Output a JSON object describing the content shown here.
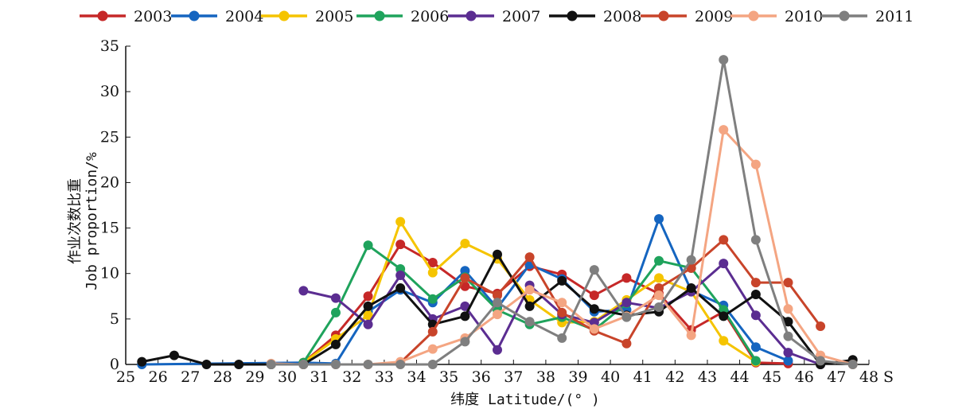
{
  "chart_data": {
    "type": "line",
    "xlabel": "纬度 Latitude/(° )",
    "ylabel_cn": "作业次数比重",
    "ylabel_en": "Job proportion/%",
    "x_unit_suffix": "S",
    "x_ticks": [
      25,
      26,
      27,
      28,
      29,
      30,
      31,
      32,
      33,
      34,
      35,
      36,
      37,
      38,
      39,
      40,
      41,
      42,
      43,
      44,
      45,
      46,
      47,
      48
    ],
    "y_ticks": [
      0,
      5,
      10,
      15,
      20,
      25,
      30,
      35
    ],
    "xlim": [
      25,
      48
    ],
    "ylim": [
      0,
      35
    ],
    "grid": false,
    "legend_position": "top",
    "series": [
      {
        "name": "2003",
        "color": "#c62828",
        "x": [
          30.5,
          31.5,
          32.5,
          33.5,
          34.5,
          35.5,
          36.5,
          37.5,
          38.5,
          39.5,
          40.5,
          41.5,
          42.5,
          43.5,
          44.5,
          45.5
        ],
        "y": [
          0.2,
          3.2,
          7.5,
          13.2,
          11.2,
          8.6,
          7.8,
          10.8,
          9.9,
          7.6,
          9.5,
          7.8,
          3.8,
          5.8,
          0.2,
          0.1
        ]
      },
      {
        "name": "2004",
        "color": "#1565c0",
        "x": [
          25.5,
          30.5,
          31.5,
          32.5,
          33.5,
          34.5,
          35.5,
          36.5,
          37.5,
          38.5,
          39.5,
          40.5,
          41.5,
          42.5,
          43.5,
          44.5,
          45.5
        ],
        "y": [
          0,
          0.2,
          0.1,
          5.8,
          8.2,
          6.8,
          10.3,
          6.2,
          11.0,
          9.4,
          5.8,
          6.0,
          16.0,
          8.1,
          6.5,
          1.9,
          0.4
        ]
      },
      {
        "name": "2005",
        "color": "#f5c400",
        "x": [
          30.5,
          31.5,
          32.5,
          33.5,
          34.5,
          35.5,
          36.5,
          37.5,
          38.5,
          39.5,
          40.5,
          41.5,
          42.5,
          43.5,
          44.5
        ],
        "y": [
          0.2,
          2.8,
          5.4,
          15.7,
          10.1,
          13.3,
          11.6,
          7.1,
          4.6,
          4.7,
          7.1,
          9.5,
          8.0,
          2.6,
          0.3
        ]
      },
      {
        "name": "2006",
        "color": "#1fa35c",
        "x": [
          30.5,
          31.5,
          32.5,
          33.5,
          34.5,
          35.5,
          36.5,
          37.5,
          38.5,
          39.5,
          40.5,
          41.5,
          42.5,
          43.5,
          44.5
        ],
        "y": [
          0.2,
          5.7,
          13.1,
          10.5,
          7.2,
          9.6,
          6.0,
          4.4,
          5.2,
          3.8,
          6.7,
          11.4,
          10.6,
          6.0,
          0.4
        ]
      },
      {
        "name": "2007",
        "color": "#5b2d91",
        "x": [
          30.5,
          31.5,
          32.5,
          33.5,
          34.5,
          35.5,
          36.5,
          37.5,
          38.5,
          39.5,
          40.5,
          41.5,
          42.5,
          43.5,
          44.5,
          45.5,
          46.5
        ],
        "y": [
          8.1,
          7.3,
          4.4,
          9.8,
          5.0,
          6.4,
          1.6,
          8.7,
          5.5,
          4.6,
          6.8,
          6.2,
          8.0,
          11.1,
          5.4,
          1.3,
          0
        ]
      },
      {
        "name": "2008",
        "color": "#111111",
        "x": [
          25.5,
          26.5,
          27.5,
          28.5,
          29.5,
          30.5,
          31.5,
          32.5,
          33.5,
          34.5,
          35.5,
          36.5,
          37.5,
          38.5,
          39.5,
          40.5,
          41.5,
          42.5,
          43.5,
          44.5,
          45.5,
          46.5,
          47.5
        ],
        "y": [
          0.3,
          1.0,
          0,
          0,
          0,
          0,
          2.2,
          6.4,
          8.4,
          4.4,
          5.3,
          12.1,
          6.4,
          9.2,
          6.1,
          5.4,
          5.8,
          8.4,
          5.3,
          7.7,
          4.7,
          0,
          0.5
        ]
      },
      {
        "name": "2009",
        "color": "#c8442a",
        "x": [
          33.5,
          34.5,
          35.5,
          36.5,
          37.5,
          38.5,
          39.5,
          40.5,
          41.5,
          42.5,
          43.5,
          44.5,
          45.5,
          46.5
        ],
        "y": [
          0.2,
          3.6,
          9.5,
          7.6,
          11.8,
          5.7,
          3.7,
          2.3,
          8.4,
          10.6,
          13.7,
          9.0,
          9.0,
          4.2
        ]
      },
      {
        "name": "2010",
        "color": "#f4a582",
        "x": [
          29.5,
          30.5,
          31.5,
          32.5,
          33.5,
          34.5,
          35.5,
          36.5,
          37.5,
          38.5,
          39.5,
          40.5,
          41.5,
          42.5,
          43.5,
          44.5,
          45.5,
          46.5,
          47.5
        ],
        "y": [
          0.1,
          0,
          0,
          0,
          0.3,
          1.7,
          2.9,
          5.5,
          8.2,
          6.8,
          3.9,
          5.3,
          7.6,
          3.2,
          25.8,
          22.0,
          6.1,
          1.0,
          0
        ]
      },
      {
        "name": "2011",
        "color": "#7f7f7f",
        "x": [
          29.5,
          30.5,
          31.5,
          32.5,
          33.5,
          34.5,
          35.5,
          36.5,
          37.5,
          38.5,
          39.5,
          40.5,
          41.5,
          42.5,
          43.5,
          44.5,
          45.5,
          46.5,
          47.5
        ],
        "y": [
          0,
          0,
          0,
          0,
          0,
          0,
          2.5,
          6.8,
          4.7,
          2.9,
          10.4,
          5.2,
          6.3,
          11.5,
          33.5,
          13.7,
          3.1,
          0.4,
          0
        ]
      }
    ]
  }
}
